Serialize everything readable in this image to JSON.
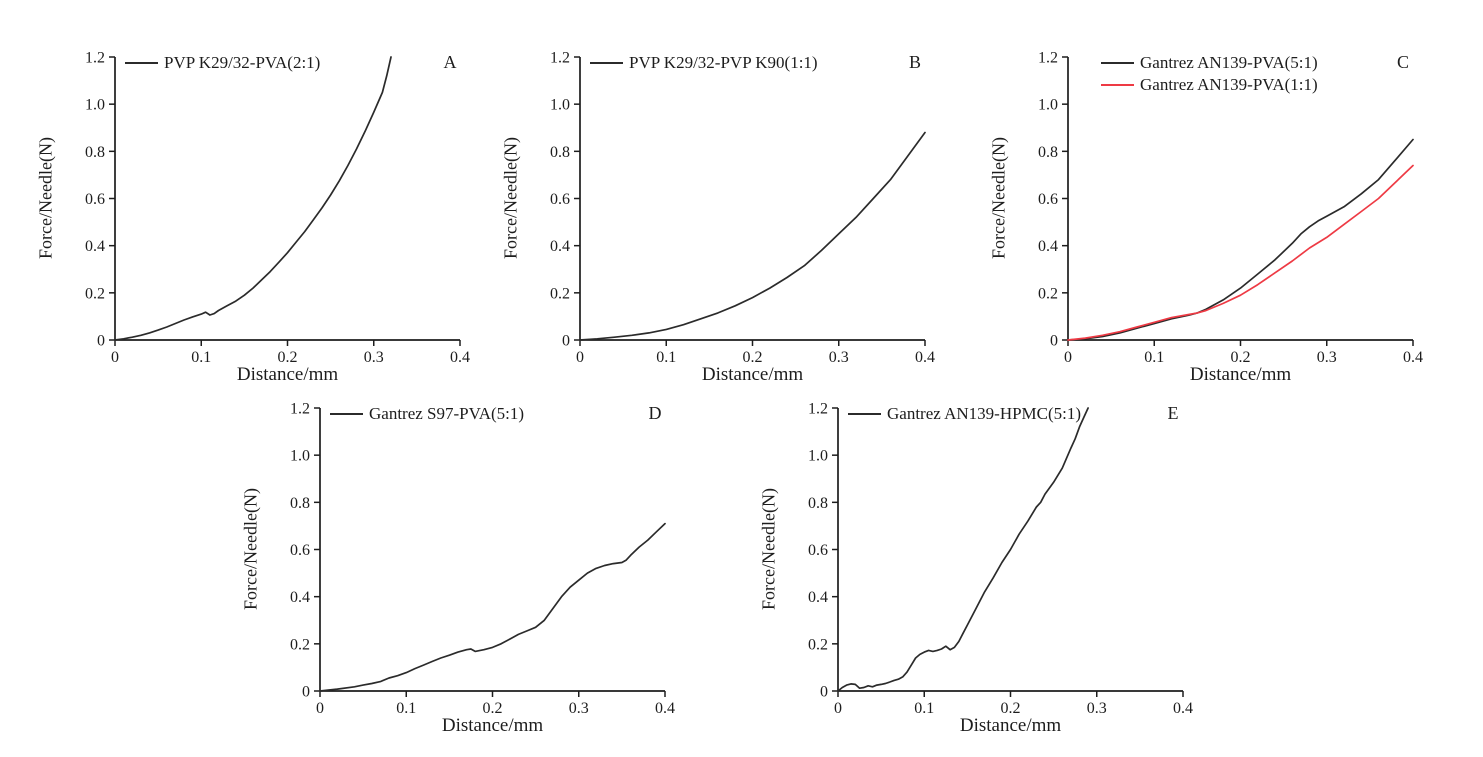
{
  "figure": {
    "background": "#ffffff",
    "description": "Five line charts (A-E) of needle insertion force versus distance for different polymer film formulations"
  },
  "style": {
    "axis_color": "#1d1d1d",
    "text_color": "#1d1d1d",
    "black_curve": "#2b2b2b",
    "red_curve": "#ee3a44"
  },
  "chart_data": [
    {
      "type": "line",
      "letter": "A",
      "xlabel": "Distance/mm",
      "ylabel": "Force/Needle(N)",
      "xlim": [
        0,
        0.4
      ],
      "ylim": [
        0,
        1.2
      ],
      "xticks": [
        "0",
        "0.1",
        "0.2",
        "0.3",
        "0.4"
      ],
      "yticks": [
        "0",
        "0.2",
        "0.4",
        "0.6",
        "0.8",
        "1.0",
        "1.2"
      ],
      "grid": false,
      "legend_position": "top-left",
      "series": [
        {
          "name": "PVP K29/32-PVA(2:1)",
          "color": "#2b2b2b",
          "points": [
            [
              0,
              0
            ],
            [
              0.01,
              0.005
            ],
            [
              0.02,
              0.012
            ],
            [
              0.03,
              0.02
            ],
            [
              0.04,
              0.03
            ],
            [
              0.05,
              0.042
            ],
            [
              0.06,
              0.055
            ],
            [
              0.07,
              0.07
            ],
            [
              0.08,
              0.085
            ],
            [
              0.09,
              0.098
            ],
            [
              0.1,
              0.11
            ],
            [
              0.105,
              0.118
            ],
            [
              0.11,
              0.106
            ],
            [
              0.115,
              0.112
            ],
            [
              0.12,
              0.125
            ],
            [
              0.13,
              0.145
            ],
            [
              0.14,
              0.165
            ],
            [
              0.15,
              0.19
            ],
            [
              0.16,
              0.22
            ],
            [
              0.17,
              0.255
            ],
            [
              0.18,
              0.29
            ],
            [
              0.19,
              0.33
            ],
            [
              0.2,
              0.37
            ],
            [
              0.21,
              0.415
            ],
            [
              0.22,
              0.46
            ],
            [
              0.23,
              0.51
            ],
            [
              0.24,
              0.56
            ],
            [
              0.25,
              0.615
            ],
            [
              0.26,
              0.675
            ],
            [
              0.27,
              0.74
            ],
            [
              0.28,
              0.81
            ],
            [
              0.29,
              0.885
            ],
            [
              0.3,
              0.965
            ],
            [
              0.31,
              1.05
            ],
            [
              0.315,
              1.12
            ],
            [
              0.32,
              1.2
            ]
          ]
        }
      ]
    },
    {
      "type": "line",
      "letter": "B",
      "xlabel": "Distance/mm",
      "ylabel": "Force/Needle(N)",
      "xlim": [
        0,
        0.4
      ],
      "ylim": [
        0,
        1.2
      ],
      "xticks": [
        "0",
        "0.1",
        "0.2",
        "0.3",
        "0.4"
      ],
      "yticks": [
        "0",
        "0.2",
        "0.4",
        "0.6",
        "0.8",
        "1.0",
        "1.2"
      ],
      "grid": false,
      "legend_position": "top-left",
      "series": [
        {
          "name": "PVP K29/32-PVP K90(1:1)",
          "color": "#2b2b2b",
          "points": [
            [
              0,
              0
            ],
            [
              0.02,
              0.005
            ],
            [
              0.04,
              0.012
            ],
            [
              0.06,
              0.02
            ],
            [
              0.08,
              0.03
            ],
            [
              0.1,
              0.045
            ],
            [
              0.12,
              0.065
            ],
            [
              0.14,
              0.09
            ],
            [
              0.16,
              0.115
            ],
            [
              0.18,
              0.145
            ],
            [
              0.2,
              0.18
            ],
            [
              0.22,
              0.22
            ],
            [
              0.24,
              0.265
            ],
            [
              0.26,
              0.315
            ],
            [
              0.28,
              0.38
            ],
            [
              0.3,
              0.45
            ],
            [
              0.32,
              0.52
            ],
            [
              0.34,
              0.6
            ],
            [
              0.36,
              0.68
            ],
            [
              0.38,
              0.78
            ],
            [
              0.4,
              0.88
            ]
          ]
        }
      ]
    },
    {
      "type": "line",
      "letter": "C",
      "xlabel": "Distance/mm",
      "ylabel": "Force/Needle(N)",
      "xlim": [
        0,
        0.4
      ],
      "ylim": [
        0,
        1.2
      ],
      "xticks": [
        "0",
        "0.1",
        "0.2",
        "0.3",
        "0.4"
      ],
      "yticks": [
        "0",
        "0.2",
        "0.4",
        "0.6",
        "0.8",
        "1.0",
        "1.2"
      ],
      "grid": false,
      "legend_position": "top-left",
      "series": [
        {
          "name": "Gantrez AN139-PVA(5:1)",
          "color": "#2b2b2b",
          "points": [
            [
              0,
              0
            ],
            [
              0.02,
              0.005
            ],
            [
              0.04,
              0.015
            ],
            [
              0.06,
              0.03
            ],
            [
              0.08,
              0.05
            ],
            [
              0.1,
              0.07
            ],
            [
              0.12,
              0.09
            ],
            [
              0.14,
              0.105
            ],
            [
              0.15,
              0.115
            ],
            [
              0.16,
              0.13
            ],
            [
              0.18,
              0.17
            ],
            [
              0.2,
              0.22
            ],
            [
              0.22,
              0.28
            ],
            [
              0.24,
              0.34
            ],
            [
              0.26,
              0.41
            ],
            [
              0.27,
              0.45
            ],
            [
              0.28,
              0.48
            ],
            [
              0.29,
              0.505
            ],
            [
              0.3,
              0.525
            ],
            [
              0.32,
              0.565
            ],
            [
              0.34,
              0.62
            ],
            [
              0.36,
              0.68
            ],
            [
              0.38,
              0.765
            ],
            [
              0.4,
              0.85
            ]
          ]
        },
        {
          "name": "Gantrez AN139-PVA(1:1)",
          "color": "#ee3a44",
          "points": [
            [
              0,
              0
            ],
            [
              0.02,
              0.008
            ],
            [
              0.04,
              0.02
            ],
            [
              0.06,
              0.035
            ],
            [
              0.08,
              0.055
            ],
            [
              0.1,
              0.075
            ],
            [
              0.12,
              0.095
            ],
            [
              0.14,
              0.108
            ],
            [
              0.15,
              0.115
            ],
            [
              0.16,
              0.125
            ],
            [
              0.18,
              0.155
            ],
            [
              0.2,
              0.19
            ],
            [
              0.22,
              0.235
            ],
            [
              0.24,
              0.285
            ],
            [
              0.26,
              0.335
            ],
            [
              0.28,
              0.39
            ],
            [
              0.3,
              0.435
            ],
            [
              0.32,
              0.49
            ],
            [
              0.34,
              0.545
            ],
            [
              0.36,
              0.6
            ],
            [
              0.38,
              0.67
            ],
            [
              0.4,
              0.74
            ]
          ]
        }
      ]
    },
    {
      "type": "line",
      "letter": "D",
      "xlabel": "Distance/mm",
      "ylabel": "Force/Needle(N)",
      "xlim": [
        0,
        0.4
      ],
      "ylim": [
        0,
        1.2
      ],
      "xticks": [
        "0",
        "0.1",
        "0.2",
        "0.3",
        "0.4"
      ],
      "yticks": [
        "0",
        "0.2",
        "0.4",
        "0.6",
        "0.8",
        "1.0",
        "1.2"
      ],
      "grid": false,
      "legend_position": "top-left",
      "series": [
        {
          "name": "Gantrez S97-PVA(5:1)",
          "color": "#2b2b2b",
          "points": [
            [
              0,
              0
            ],
            [
              0.02,
              0.008
            ],
            [
              0.04,
              0.018
            ],
            [
              0.05,
              0.025
            ],
            [
              0.06,
              0.032
            ],
            [
              0.07,
              0.04
            ],
            [
              0.08,
              0.055
            ],
            [
              0.09,
              0.065
            ],
            [
              0.1,
              0.078
            ],
            [
              0.11,
              0.095
            ],
            [
              0.12,
              0.11
            ],
            [
              0.13,
              0.125
            ],
            [
              0.14,
              0.14
            ],
            [
              0.15,
              0.152
            ],
            [
              0.16,
              0.165
            ],
            [
              0.17,
              0.175
            ],
            [
              0.175,
              0.178
            ],
            [
              0.18,
              0.168
            ],
            [
              0.19,
              0.175
            ],
            [
              0.2,
              0.185
            ],
            [
              0.21,
              0.2
            ],
            [
              0.22,
              0.22
            ],
            [
              0.23,
              0.24
            ],
            [
              0.24,
              0.255
            ],
            [
              0.25,
              0.27
            ],
            [
              0.26,
              0.3
            ],
            [
              0.27,
              0.35
            ],
            [
              0.28,
              0.4
            ],
            [
              0.29,
              0.44
            ],
            [
              0.3,
              0.47
            ],
            [
              0.31,
              0.5
            ],
            [
              0.32,
              0.52
            ],
            [
              0.33,
              0.532
            ],
            [
              0.34,
              0.54
            ],
            [
              0.35,
              0.545
            ],
            [
              0.355,
              0.555
            ],
            [
              0.36,
              0.575
            ],
            [
              0.37,
              0.61
            ],
            [
              0.38,
              0.64
            ],
            [
              0.39,
              0.675
            ],
            [
              0.4,
              0.71
            ]
          ]
        }
      ]
    },
    {
      "type": "line",
      "letter": "E",
      "xlabel": "Distance/mm",
      "ylabel": "Force/Needle(N)",
      "xlim": [
        0,
        0.4
      ],
      "ylim": [
        0,
        1.2
      ],
      "xticks": [
        "0",
        "0.1",
        "0.2",
        "0.3",
        "0.4"
      ],
      "yticks": [
        "0",
        "0.2",
        "0.4",
        "0.6",
        "0.8",
        "1.0",
        "1.2"
      ],
      "grid": false,
      "legend_position": "top-left",
      "series": [
        {
          "name": "Gantrez AN139-HPMC(5:1)",
          "color": "#2b2b2b",
          "points": [
            [
              0,
              0
            ],
            [
              0.005,
              0.015
            ],
            [
              0.01,
              0.025
            ],
            [
              0.015,
              0.03
            ],
            [
              0.02,
              0.028
            ],
            [
              0.025,
              0.012
            ],
            [
              0.03,
              0.015
            ],
            [
              0.035,
              0.022
            ],
            [
              0.04,
              0.018
            ],
            [
              0.045,
              0.025
            ],
            [
              0.05,
              0.028
            ],
            [
              0.055,
              0.032
            ],
            [
              0.06,
              0.038
            ],
            [
              0.065,
              0.045
            ],
            [
              0.07,
              0.05
            ],
            [
              0.075,
              0.06
            ],
            [
              0.08,
              0.08
            ],
            [
              0.085,
              0.11
            ],
            [
              0.09,
              0.14
            ],
            [
              0.095,
              0.155
            ],
            [
              0.1,
              0.165
            ],
            [
              0.105,
              0.172
            ],
            [
              0.11,
              0.168
            ],
            [
              0.115,
              0.172
            ],
            [
              0.12,
              0.178
            ],
            [
              0.125,
              0.19
            ],
            [
              0.13,
              0.175
            ],
            [
              0.135,
              0.185
            ],
            [
              0.14,
              0.21
            ],
            [
              0.145,
              0.245
            ],
            [
              0.15,
              0.28
            ],
            [
              0.16,
              0.35
            ],
            [
              0.17,
              0.42
            ],
            [
              0.18,
              0.48
            ],
            [
              0.19,
              0.545
            ],
            [
              0.2,
              0.6
            ],
            [
              0.21,
              0.665
            ],
            [
              0.22,
              0.72
            ],
            [
              0.23,
              0.78
            ],
            [
              0.235,
              0.8
            ],
            [
              0.24,
              0.835
            ],
            [
              0.25,
              0.885
            ],
            [
              0.26,
              0.945
            ],
            [
              0.27,
              1.03
            ],
            [
              0.275,
              1.07
            ],
            [
              0.28,
              1.12
            ],
            [
              0.285,
              1.16
            ],
            [
              0.29,
              1.2
            ]
          ]
        }
      ]
    }
  ]
}
